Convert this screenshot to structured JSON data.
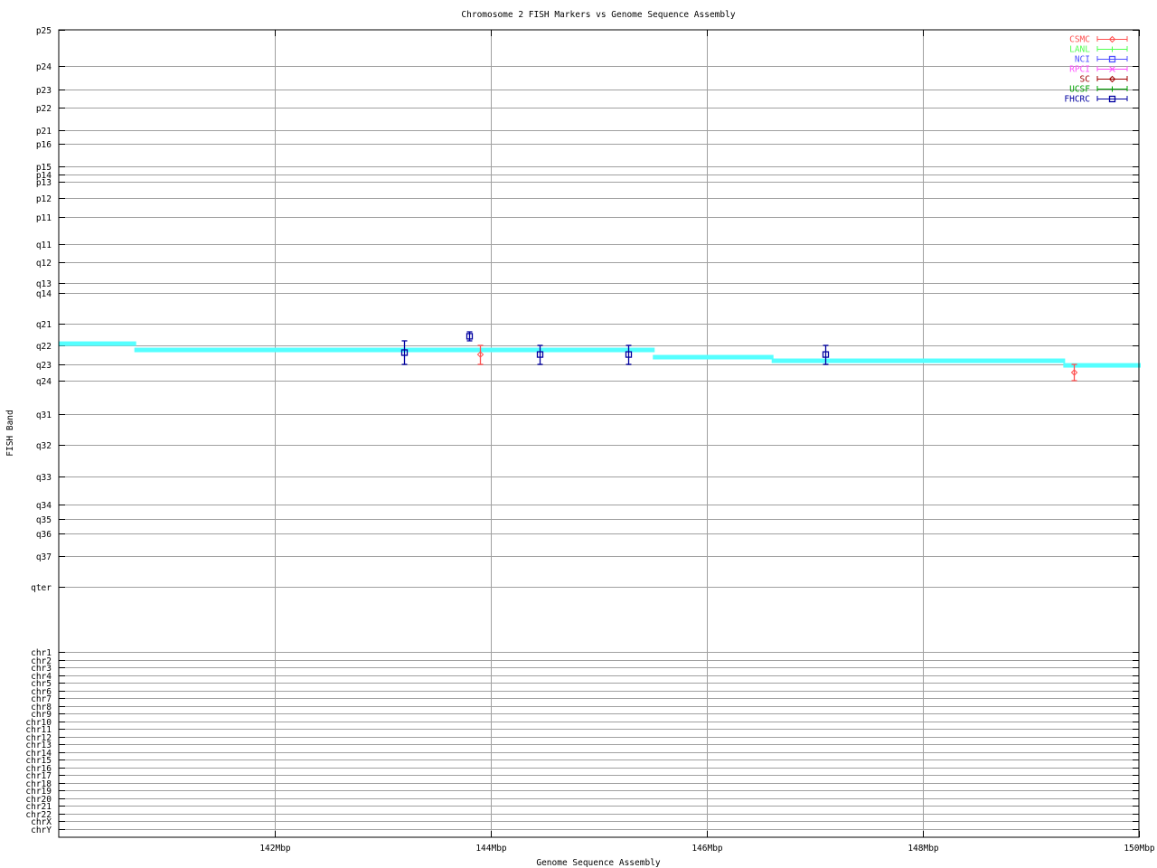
{
  "chart_data": {
    "type": "scatter",
    "title": "Chromosome 2 FISH Markers vs Genome Sequence Assembly",
    "xlabel": "Genome Sequence Assembly",
    "ylabel": "FISH Band",
    "xlim": [
      140,
      150
    ],
    "x_ticks": [
      {
        "value": 142,
        "label": "142Mbp"
      },
      {
        "value": 144,
        "label": "144Mbp"
      },
      {
        "value": 146,
        "label": "146Mbp"
      },
      {
        "value": 148,
        "label": "148Mbp"
      },
      {
        "value": 150,
        "label": "150Mbp"
      }
    ],
    "y_ticks": [
      "p25",
      "p24",
      "p23",
      "p22",
      "p21",
      "p16",
      "p15",
      "p14",
      "p13",
      "p12",
      "p11",
      "q11",
      "q12",
      "q13",
      "q14",
      "q21",
      "q22",
      "q23",
      "q24",
      "q31",
      "q32",
      "q33",
      "q34",
      "q35",
      "q36",
      "q37",
      "qter",
      "chr1",
      "chr2",
      "chr3",
      "chr4",
      "chr5",
      "chr6",
      "chr7",
      "chr8",
      "chr9",
      "chr10",
      "chr11",
      "chr12",
      "chr13",
      "chr14",
      "chr15",
      "chr16",
      "chr17",
      "chr18",
      "chr19",
      "chr20",
      "chr21",
      "chr22",
      "chrX",
      "chrY"
    ],
    "y_value_note_units": "band index",
    "grid": true,
    "legend_placement": "top-right",
    "legend": [
      {
        "name": "CSMC",
        "color": "#ff5050",
        "marker": "diamond"
      },
      {
        "name": "LANL",
        "color": "#50ff50",
        "marker": "plus"
      },
      {
        "name": "NCI",
        "color": "#5050ff",
        "marker": "square"
      },
      {
        "name": "RPCI",
        "color": "#ff50ff",
        "marker": "cross"
      },
      {
        "name": "SC",
        "color": "#a00000",
        "marker": "diamond"
      },
      {
        "name": "UCSF",
        "color": "#00a000",
        "marker": "plus"
      },
      {
        "name": "FHCRC",
        "color": "#0000a0",
        "marker": "square"
      }
    ],
    "assembly_line": {
      "color": "#55ffff",
      "segments": [
        {
          "x0": 140.0,
          "x1": 140.7,
          "y": 15.92
        },
        {
          "x0": 140.7,
          "x1": 145.5,
          "y": 16.24
        },
        {
          "x0": 145.5,
          "x1": 146.6,
          "y": 16.62
        },
        {
          "x0": 146.6,
          "x1": 149.3,
          "y": 16.81
        },
        {
          "x0": 149.3,
          "x1": 150.0,
          "y": 17.06
        }
      ]
    },
    "points": [
      {
        "series": "FHCRC",
        "x": 143.2,
        "y": 16.38,
        "ylow": 15.79,
        "yhigh": 17
      },
      {
        "series": "FHCRC",
        "x": 143.8,
        "y": 15.58,
        "ylow": 15.375,
        "yhigh": 15.79
      },
      {
        "series": "CSMC",
        "x": 143.9,
        "y": 16.48,
        "ylow": 16,
        "yhigh": 17
      },
      {
        "series": "FHCRC",
        "x": 144.45,
        "y": 16.48,
        "ylow": 16,
        "yhigh": 17
      },
      {
        "series": "FHCRC",
        "x": 145.27,
        "y": 16.48,
        "ylow": 16,
        "yhigh": 17
      },
      {
        "series": "FHCRC",
        "x": 147.1,
        "y": 16.48,
        "ylow": 16,
        "yhigh": 17
      },
      {
        "series": "CSMC",
        "x": 149.4,
        "y": 17.5,
        "ylow": 17,
        "yhigh": 18
      }
    ]
  }
}
